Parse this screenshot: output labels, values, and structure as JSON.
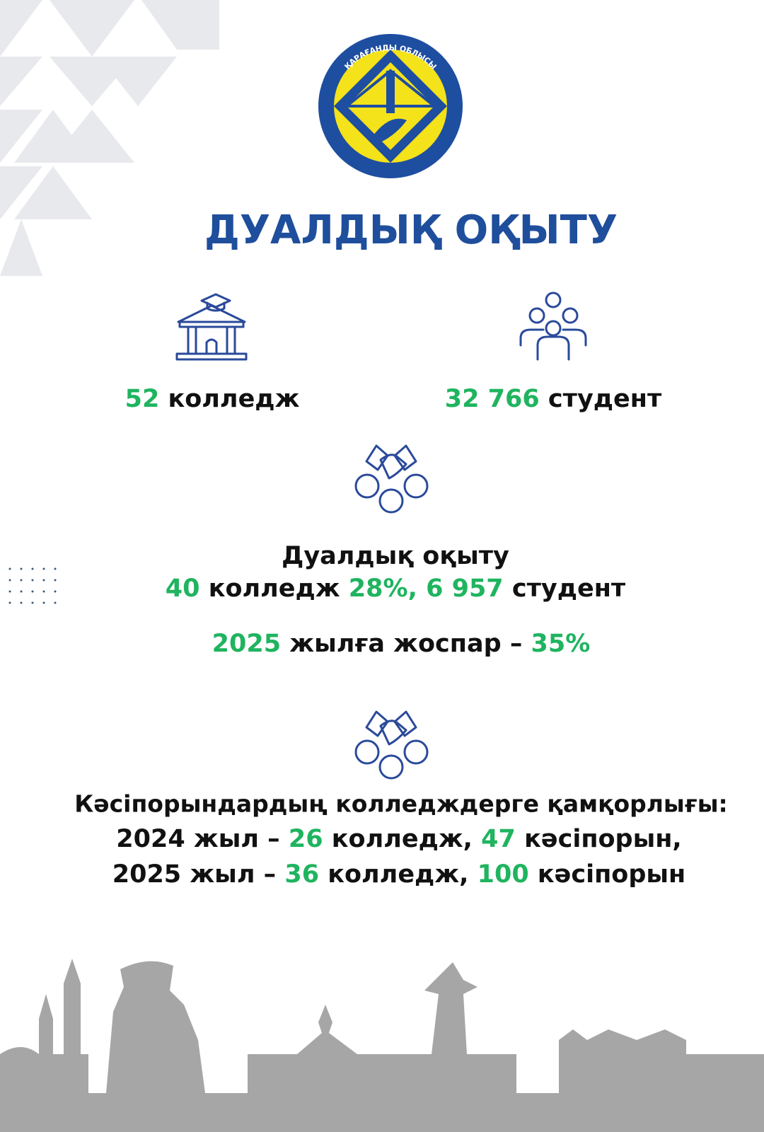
{
  "logo": {
    "text": "ҚАРАҒАНДЫ ОБЛЫСЫ"
  },
  "title": "ДУАЛДЫҚ ОҚЫТУ",
  "stats": [
    {
      "number": "52",
      "label": "колледж"
    },
    {
      "number": "32 766",
      "label": "студент"
    }
  ],
  "dual": {
    "heading": "Дуалдық оқыту",
    "colleges": "40",
    "colleges_label": "колледж",
    "share": "28%,",
    "students": "6 957",
    "students_label": "студент",
    "plan_year": "2025",
    "plan_label": "жылға жоспар –",
    "plan_value": "35%"
  },
  "support": {
    "heading": "Кәсіпорындардың колледждерге қамқорлығы:",
    "rows": [
      {
        "year": "2024",
        "year_label": "жыл –",
        "colleges": "26",
        "colleges_label": "колледж,",
        "companies": "47",
        "companies_label": "кәсіпорын,"
      },
      {
        "year": "2025",
        "year_label": "жыл –",
        "colleges": "36",
        "colleges_label": "колледж,",
        "companies": "100",
        "companies_label": "кәсіпорын"
      }
    ]
  }
}
